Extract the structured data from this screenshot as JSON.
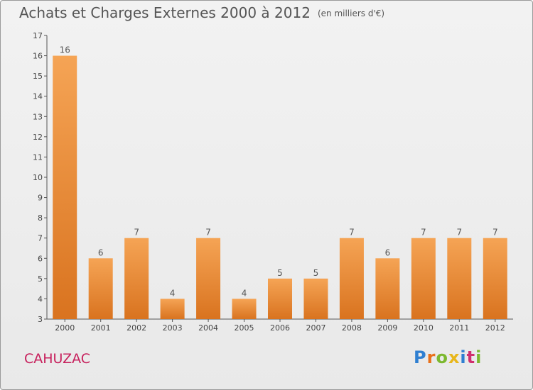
{
  "header": {
    "title": "Achats et Charges Externes 2000 à 2012",
    "unit": "(en milliers d'€)"
  },
  "footer": {
    "commune": "CAHUZAC",
    "logo_text": "Proxiti"
  },
  "colors": {
    "bar_light": "#f5a455",
    "bar_dark": "#d9731f",
    "commune": "#c7215d",
    "axis": "#555555"
  },
  "chart_data": {
    "type": "bar",
    "title": "Achats et Charges Externes 2000 à 2012",
    "subtitle": "(en milliers d'€)",
    "xlabel": "",
    "ylabel": "",
    "categories": [
      "2000",
      "2001",
      "2002",
      "2003",
      "2004",
      "2005",
      "2006",
      "2007",
      "2008",
      "2009",
      "2010",
      "2011",
      "2012"
    ],
    "values": [
      16,
      6,
      7,
      4,
      7,
      4,
      5,
      5,
      7,
      6,
      7,
      7,
      7
    ],
    "ylim": [
      3,
      17
    ],
    "yticks": [
      3,
      4,
      5,
      6,
      7,
      8,
      9,
      10,
      11,
      12,
      13,
      14,
      15,
      16,
      17
    ],
    "grid": false,
    "data_labels": true
  }
}
